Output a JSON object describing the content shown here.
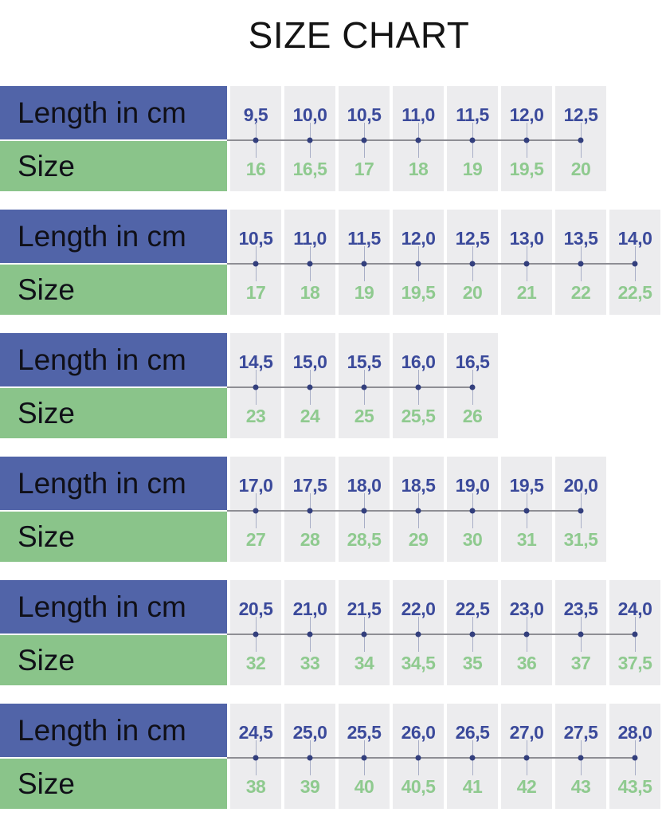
{
  "chart_data": {
    "type": "table",
    "title": "SIZE CHART",
    "row_labels": {
      "length_label": "Length in cm",
      "size_label": "Size"
    },
    "groups": [
      {
        "lengths": [
          "9,5",
          "10,0",
          "10,5",
          "11,0",
          "11,5",
          "12,0",
          "12,5"
        ],
        "sizes": [
          "16",
          "16,5",
          "17",
          "18",
          "19",
          "19,5",
          "20"
        ]
      },
      {
        "lengths": [
          "10,5",
          "11,0",
          "11,5",
          "12,0",
          "12,5",
          "13,0",
          "13,5",
          "14,0"
        ],
        "sizes": [
          "17",
          "18",
          "19",
          "19,5",
          "20",
          "21",
          "22",
          "22,5"
        ]
      },
      {
        "lengths": [
          "14,5",
          "15,0",
          "15,5",
          "16,0",
          "16,5"
        ],
        "sizes": [
          "23",
          "24",
          "25",
          "25,5",
          "26"
        ]
      },
      {
        "lengths": [
          "17,0",
          "17,5",
          "18,0",
          "18,5",
          "19,0",
          "19,5",
          "20,0"
        ],
        "sizes": [
          "27",
          "28",
          "28,5",
          "29",
          "30",
          "31",
          "31,5"
        ]
      },
      {
        "lengths": [
          "20,5",
          "21,0",
          "21,5",
          "22,0",
          "22,5",
          "23,0",
          "23,5",
          "24,0"
        ],
        "sizes": [
          "32",
          "33",
          "34",
          "34,5",
          "35",
          "36",
          "37",
          "37,5"
        ]
      },
      {
        "lengths": [
          "24,5",
          "25,0",
          "25,5",
          "26,0",
          "26,5",
          "27,0",
          "27,5",
          "28,0"
        ],
        "sizes": [
          "38",
          "39",
          "40",
          "40,5",
          "41",
          "42",
          "43",
          "43,5"
        ]
      }
    ]
  },
  "colors": {
    "header_blue": "#5164a8",
    "header_green": "#8ac48a",
    "cell_background": "#ececee",
    "length_text": "#3b4a9b",
    "size_text": "#8fca8f",
    "axis_line": "#8e8e94",
    "tick_line": "#a8aec6",
    "dot": "#333f7d",
    "title_text": "#141414",
    "header_text": "#101018",
    "page_background": "#ffffff"
  }
}
